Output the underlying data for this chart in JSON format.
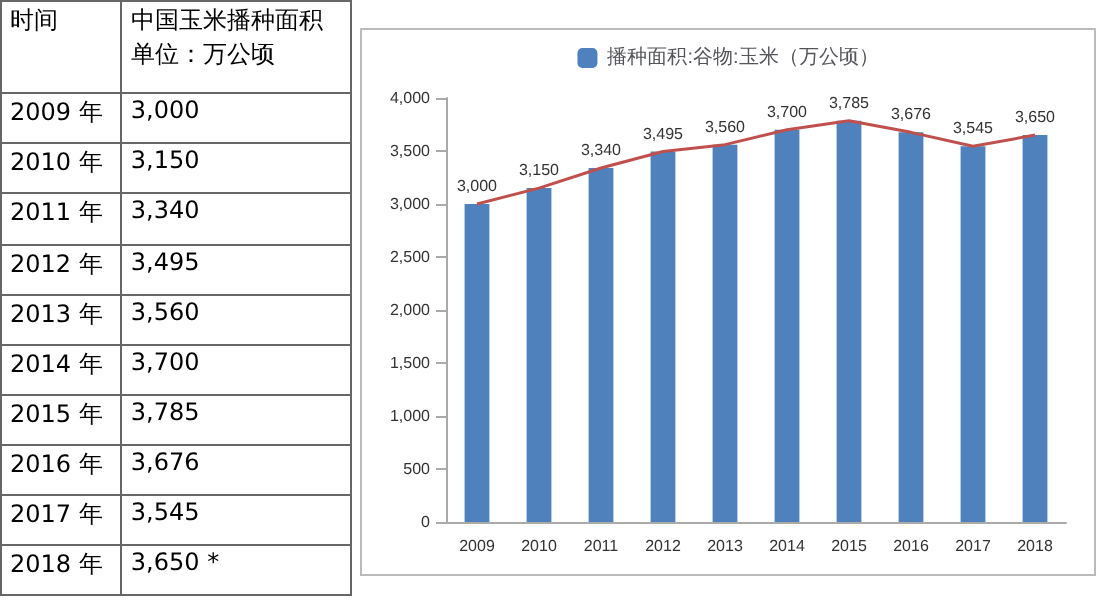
{
  "chart_data": {
    "type": "bar",
    "categories": [
      "2009",
      "2010",
      "2011",
      "2012",
      "2013",
      "2014",
      "2015",
      "2016",
      "2017",
      "2018"
    ],
    "series": [
      {
        "name": "播种面积:谷物:玉米（万公顷）",
        "color": "#4f81bd",
        "values": [
          3000,
          3150,
          3340,
          3495,
          3560,
          3700,
          3785,
          3676,
          3545,
          3650
        ],
        "value_labels": [
          "3,000",
          "3,150",
          "3,340",
          "3,495",
          "3,560",
          "3,700",
          "3,785",
          "3,676",
          "3,545",
          "3,650"
        ]
      },
      {
        "type": "line",
        "color": "#c0504d",
        "values": [
          3000,
          3150,
          3340,
          3495,
          3560,
          3700,
          3785,
          3676,
          3545,
          3650
        ]
      }
    ],
    "ylim": [
      0,
      4000
    ],
    "yticks": [
      0,
      500,
      {
        "value": 1000,
        "label": "1,000"
      },
      {
        "value": 1500,
        "label": "1,500"
      },
      {
        "value": 2000,
        "label": "2,000"
      },
      {
        "value": 2500,
        "label": "2,500"
      },
      {
        "value": 3000,
        "label": "3,000"
      },
      {
        "value": 3500,
        "label": "3,500"
      },
      {
        "value": 4000,
        "label": "4,000"
      }
    ],
    "legend": "top",
    "grid": false,
    "marker": "none",
    "annotations": [
      "时间",
      "中国玉米播种面积",
      "单位：万公顷",
      "2009 年",
      "3,000",
      "2010 年",
      "3,150",
      "2011 年",
      "3,340",
      "2012 年",
      "3,495",
      "2013 年",
      "3,560",
      "2014 年",
      "3,700",
      "2015 年",
      "3,785",
      "2016 年",
      "3,676",
      "2017 年",
      "3,545",
      "2018 年",
      "3,650 *"
    ]
  }
}
